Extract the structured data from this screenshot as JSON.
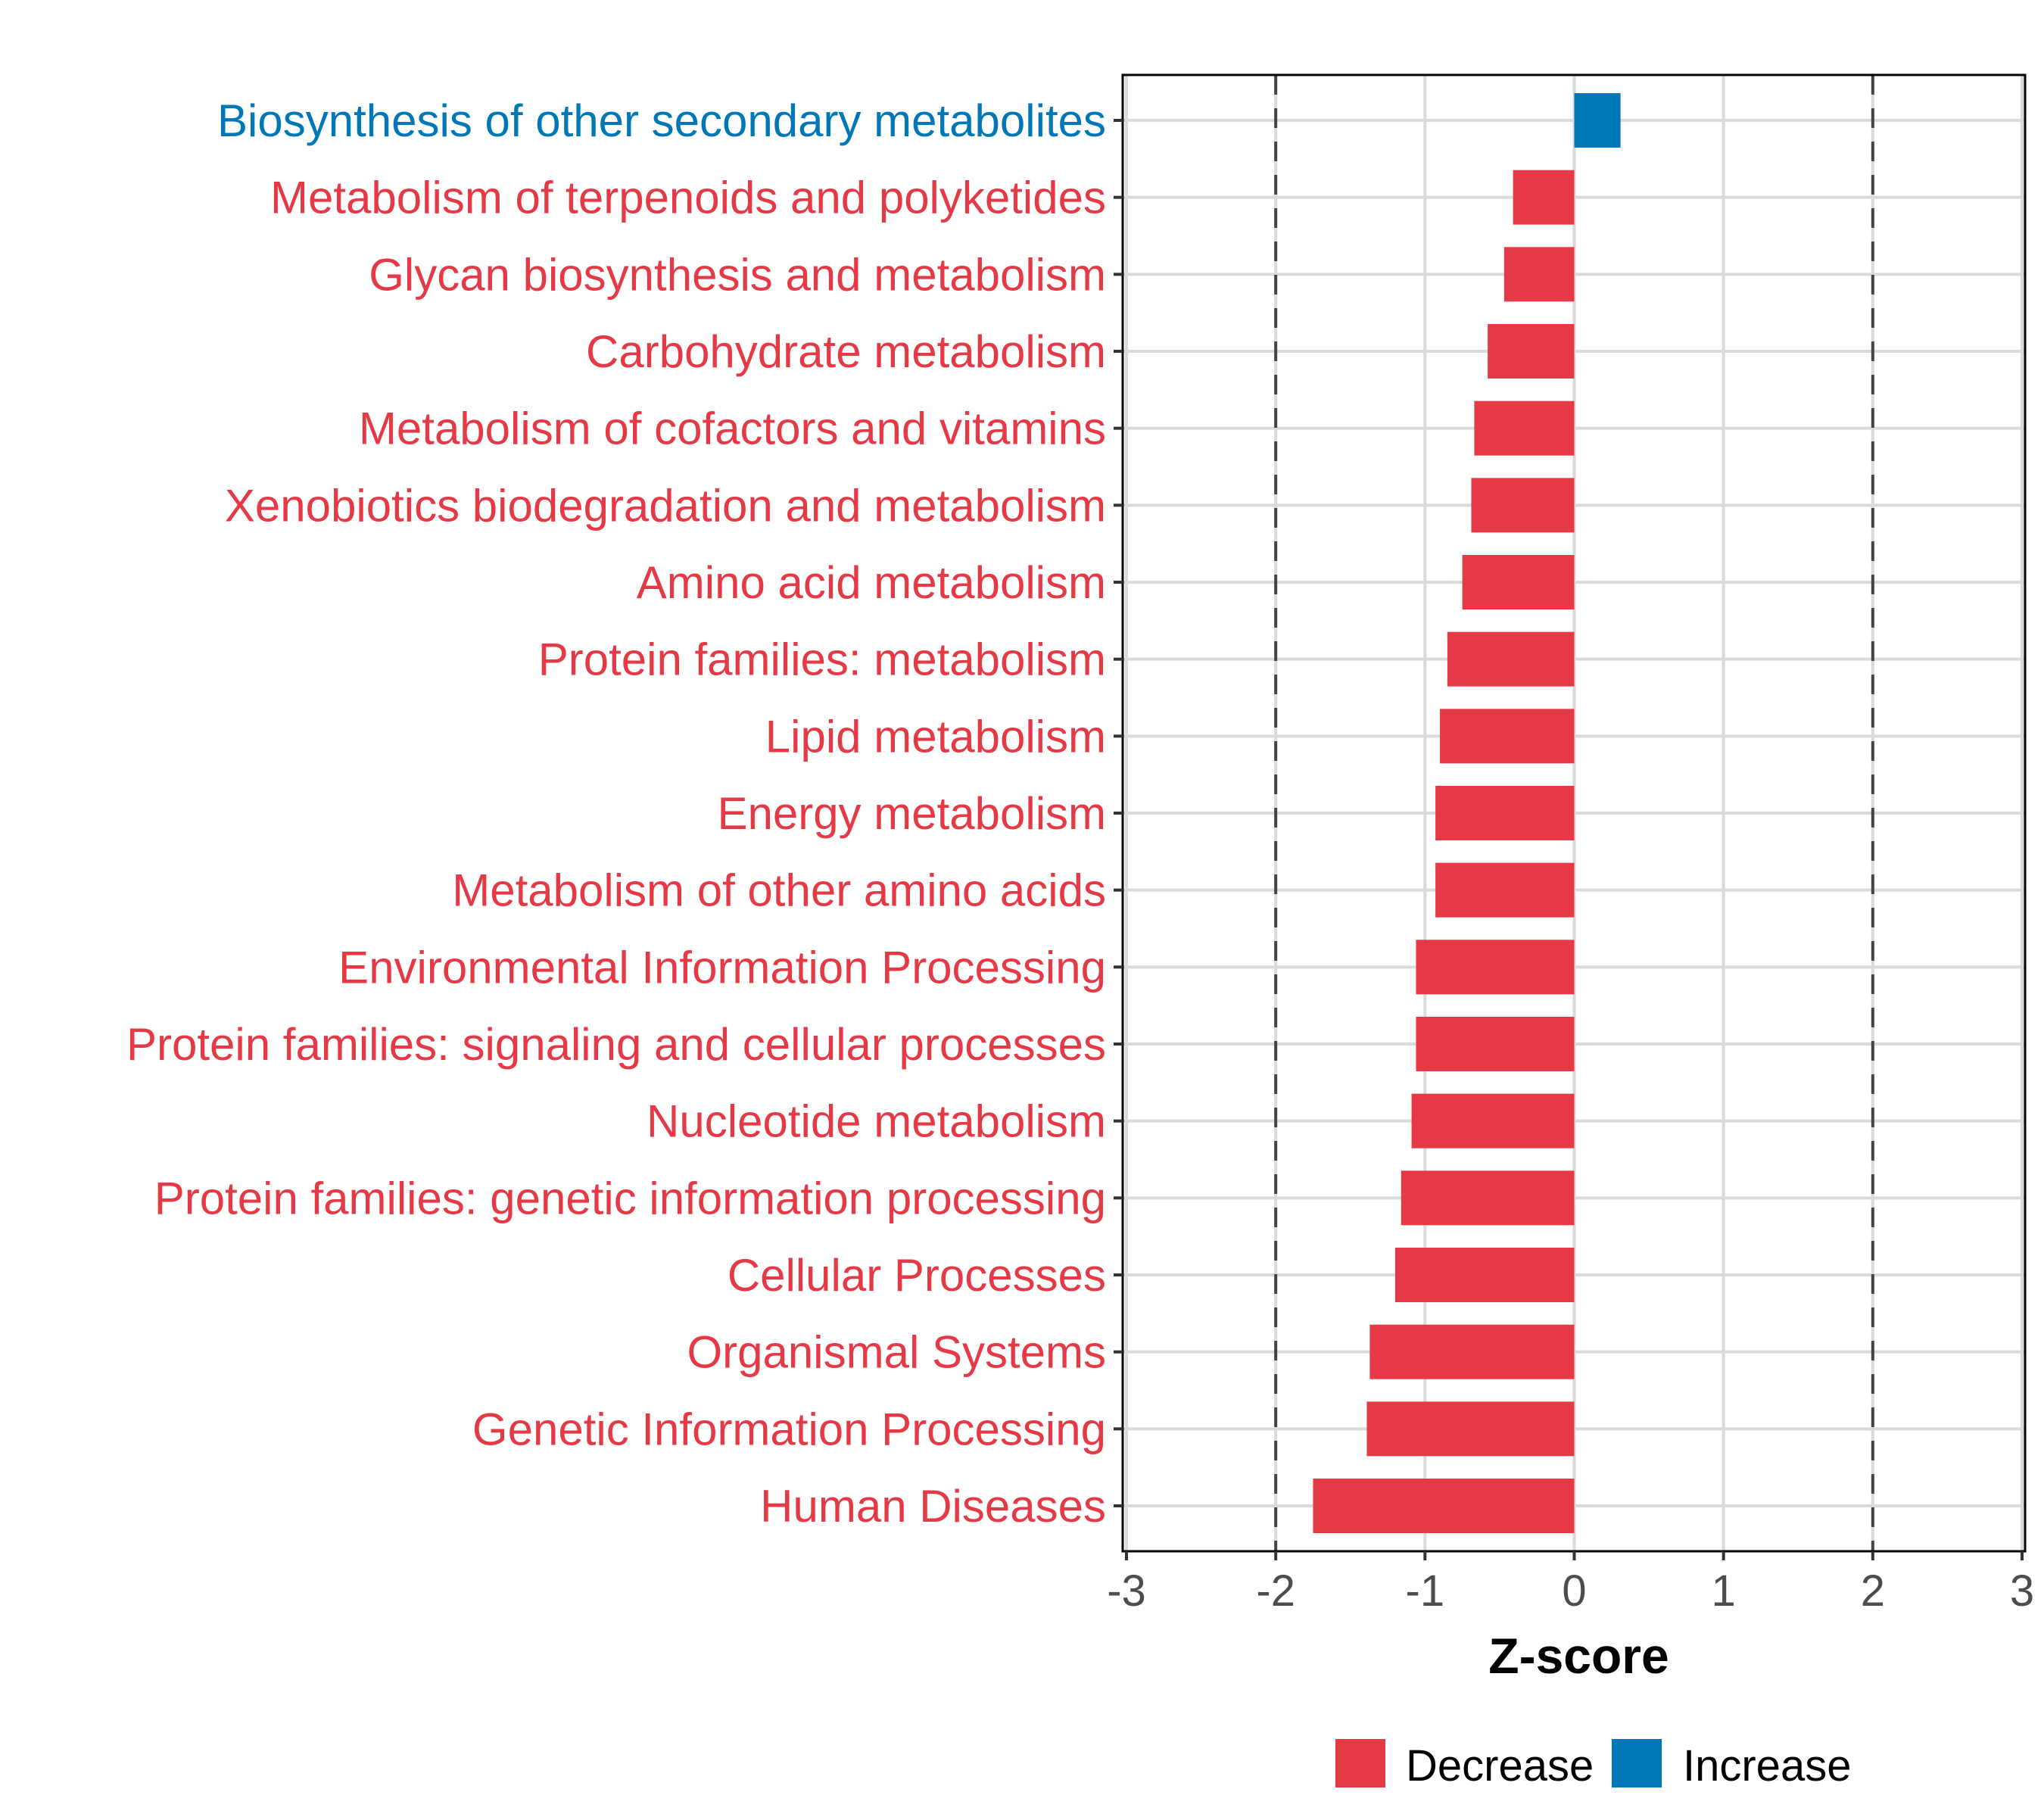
{
  "chart_data": {
    "type": "bar",
    "orientation": "horizontal",
    "title": "",
    "xlabel": "Z-score",
    "ylabel": "",
    "xlim": [
      -3,
      3
    ],
    "xticks": [
      -3,
      -2,
      -1,
      0,
      1,
      2,
      3
    ],
    "xtick_labels": [
      "-3",
      "-2",
      "-1",
      "0",
      "1",
      "2",
      "3"
    ],
    "reference_lines": [
      {
        "value": -2,
        "style": "dashed"
      },
      {
        "value": 2,
        "style": "dashed"
      }
    ],
    "grid": true,
    "legend": {
      "position": "bottom",
      "entries": [
        {
          "label": "Decrease",
          "color": "#E63946"
        },
        {
          "label": "Increase",
          "color": "#0077B6"
        }
      ]
    },
    "categories": [
      "Biosynthesis of other secondary metabolites",
      "Metabolism of terpenoids and polyketides",
      "Glycan biosynthesis and metabolism",
      "Carbohydrate metabolism",
      "Metabolism of cofactors and vitamins",
      "Xenobiotics biodegradation and metabolism",
      "Amino acid metabolism",
      "Protein families: metabolism",
      "Lipid metabolism",
      "Energy metabolism",
      "Metabolism of other amino acids",
      "Environmental Information Processing",
      "Protein families: signaling and cellular processes",
      "Nucleotide metabolism",
      "Protein families: genetic information processing",
      "Cellular Processes",
      "Organismal Systems",
      "Genetic Information Processing",
      "Human Diseases"
    ],
    "values": [
      0.31,
      -0.41,
      -0.47,
      -0.58,
      -0.67,
      -0.69,
      -0.75,
      -0.85,
      -0.9,
      -0.93,
      -0.93,
      -1.06,
      -1.06,
      -1.09,
      -1.16,
      -1.2,
      -1.37,
      -1.39,
      -1.75
    ],
    "groups": [
      "Increase",
      "Decrease",
      "Decrease",
      "Decrease",
      "Decrease",
      "Decrease",
      "Decrease",
      "Decrease",
      "Decrease",
      "Decrease",
      "Decrease",
      "Decrease",
      "Decrease",
      "Decrease",
      "Decrease",
      "Decrease",
      "Decrease",
      "Decrease",
      "Decrease"
    ]
  },
  "colors": {
    "decrease": "#E63946",
    "increase": "#0077B6",
    "grid": "#DADADA",
    "reference_line": "#444444",
    "axis": "#000000",
    "tick_text": "#4D4D4D"
  }
}
